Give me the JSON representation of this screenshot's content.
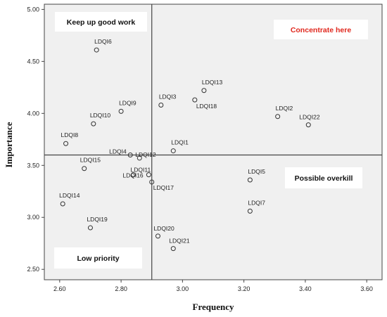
{
  "chart_data": {
    "type": "scatter",
    "xlabel": "Frequency",
    "ylabel": "Importance",
    "xlim": [
      2.55,
      3.65
    ],
    "ylim": [
      2.4,
      5.05
    ],
    "x_ticks": [
      "2.60",
      "2.80",
      "3.00",
      "3.20",
      "3.40",
      "3.60"
    ],
    "y_ticks": [
      "2.50",
      "3.00",
      "3.50",
      "4.00",
      "4.50",
      "5.00"
    ],
    "x_tick_values": [
      2.6,
      2.8,
      3.0,
      3.2,
      3.4,
      3.6
    ],
    "y_tick_values": [
      2.5,
      3.0,
      3.5,
      4.0,
      4.5,
      5.0
    ],
    "reference_lines": {
      "x": 2.9,
      "y": 3.6
    },
    "quadrants": [
      {
        "label": "Keep up good work",
        "color": "#111111"
      },
      {
        "label": "Concentrate here",
        "color": "#e0281e"
      },
      {
        "label": "Possible overkill",
        "color": "#111111"
      },
      {
        "label": "Low priority",
        "color": "#111111"
      }
    ],
    "points": [
      {
        "label": "LDQI6",
        "x": 2.72,
        "y": 4.61
      },
      {
        "label": "LDQI13",
        "x": 3.07,
        "y": 4.22
      },
      {
        "label": "LDQI3",
        "x": 2.93,
        "y": 4.08
      },
      {
        "label": "LDQI18",
        "x": 3.04,
        "y": 4.13
      },
      {
        "label": "LDQI9",
        "x": 2.8,
        "y": 4.02
      },
      {
        "label": "LDQI10",
        "x": 2.71,
        "y": 3.9
      },
      {
        "label": "LDQI2",
        "x": 3.31,
        "y": 3.97
      },
      {
        "label": "LDQI22",
        "x": 3.41,
        "y": 3.89
      },
      {
        "label": "LDQI8",
        "x": 2.62,
        "y": 3.71
      },
      {
        "label": "LDQI1",
        "x": 2.97,
        "y": 3.64
      },
      {
        "label": "LDQI4",
        "x": 2.83,
        "y": 3.6
      },
      {
        "label": "LDQI12",
        "x": 2.86,
        "y": 3.57
      },
      {
        "label": "LDQI15",
        "x": 2.68,
        "y": 3.47
      },
      {
        "label": "LDQI11",
        "x": 2.84,
        "y": 3.41
      },
      {
        "label": "LDQI16",
        "x": 2.89,
        "y": 3.41
      },
      {
        "label": "LDQI17",
        "x": 2.9,
        "y": 3.34
      },
      {
        "label": "LDQI5",
        "x": 3.22,
        "y": 3.36
      },
      {
        "label": "LDQI14",
        "x": 2.61,
        "y": 3.13
      },
      {
        "label": "LDQI7",
        "x": 3.22,
        "y": 3.06
      },
      {
        "label": "LDQI19",
        "x": 2.7,
        "y": 2.9
      },
      {
        "label": "LDQI20",
        "x": 2.92,
        "y": 2.82
      },
      {
        "label": "LDQI21",
        "x": 2.97,
        "y": 2.7
      }
    ],
    "grid": false,
    "legend": "none"
  },
  "colors": {
    "plot_background": "#f0f0f0",
    "axis_line": "#444444",
    "marker_stroke": "#333333"
  }
}
